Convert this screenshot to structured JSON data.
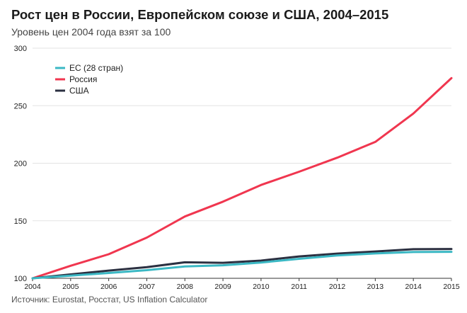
{
  "title": "Рост цен в России, Европейском союзе и США, 2004–2015",
  "subtitle": "Уровень цен 2004 года взят за 100",
  "source": "Источник: Eurostat, Росстат, US Inflation Calculator",
  "chart_data": {
    "type": "line",
    "x": [
      2004,
      2005,
      2006,
      2007,
      2008,
      2009,
      2010,
      2011,
      2012,
      2013,
      2014,
      2015
    ],
    "ylim": [
      100,
      300
    ],
    "yticks": [
      100,
      150,
      200,
      250,
      300
    ],
    "grid": true,
    "legend_position": "top-left",
    "series": [
      {
        "name": "ЕС (28 стран)",
        "color": "#3bb8c4",
        "values": [
          100,
          102.3,
          104.6,
          107.1,
          110.3,
          111.3,
          113.7,
          116.9,
          119.9,
          121.6,
          122.8,
          123.0
        ]
      },
      {
        "name": "Россия",
        "color": "#f0364f",
        "values": [
          100,
          110.9,
          120.9,
          135.4,
          153.7,
          166.6,
          181.1,
          192.6,
          204.8,
          218.5,
          243.2,
          274.0
        ]
      },
      {
        "name": "США",
        "color": "#2b3041",
        "values": [
          100,
          103.4,
          106.7,
          109.7,
          113.9,
          113.5,
          115.4,
          119.0,
          121.5,
          123.3,
          125.3,
          125.5
        ]
      }
    ]
  }
}
